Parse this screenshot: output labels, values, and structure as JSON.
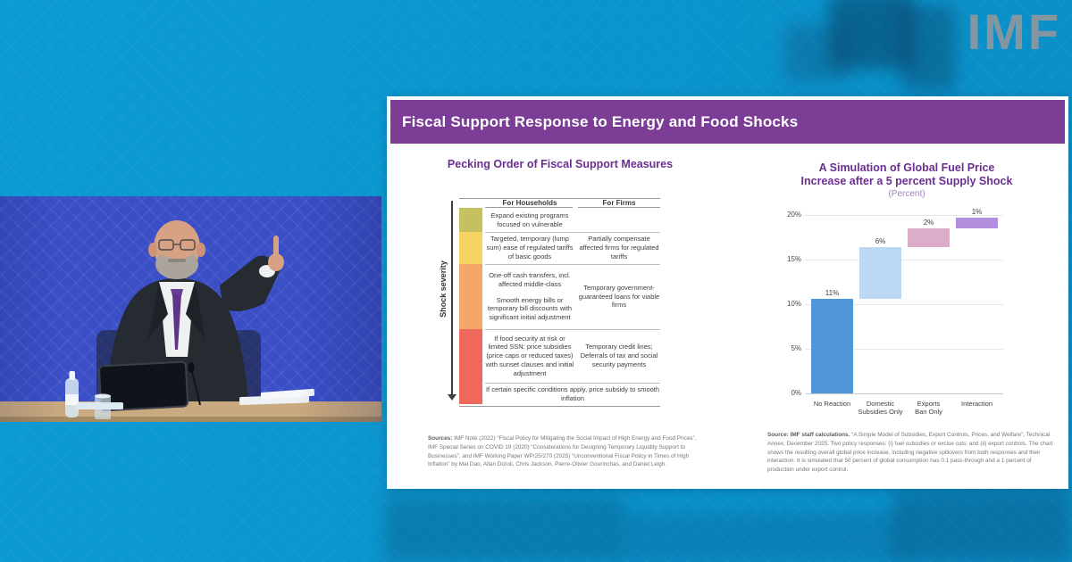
{
  "branding": {
    "logo_text": "IMF"
  },
  "slide": {
    "header_title": "Fiscal Support Response to Energy and Food Shocks",
    "left_panel": {
      "title": "Pecking Order of Fiscal Support Measures",
      "axis_label": "Shock severity",
      "columns": {
        "households": "For Households",
        "firms": "For Firms"
      },
      "severity_colors": [
        "#c5c161",
        "#f6d464",
        "#f3a869",
        "#ee695b"
      ],
      "rows": [
        {
          "households": "Expand existing programs focused on vulnerable",
          "firms": ""
        },
        {
          "households": "Targeted, temporary (lump sum) ease of regulated tariffs of basic goods",
          "firms": "Partially compensate affected firms for regulated tariffs"
        },
        {
          "households_a": "One-off cash transfers, incl. affected middle-class",
          "households_b": "Smooth energy bills or temporary bill discounts with significant initial adjustment",
          "firms": "Temporary government-guaranteed loans for viable firms"
        },
        {
          "households": "If food security at risk or limited SSN: price subsidies (price caps or reduced taxes) with sunset clauses and initial adjustment",
          "firms": "Temporary credit lines; Deferrals of tax and social security payments"
        },
        {
          "span": "If certain specific conditions apply, price subsidy to smooth inflation"
        }
      ],
      "sources_label": "Sources:",
      "sources_text": "IMF Note (2022) “Fiscal Policy for Mitigating the Social Impact of High Energy and Food Prices”, IMF Special Series on COVID 19 (2020) “Considerations for Designing Temporary Liquidity Support to Businesses”, and IMF Working Paper WP/25/270 (2025) “Unconventional Fiscal Policy in Times of High Inflation” by Mai Dao, Allan Dizioli, Chris Jackson, Pierre-Olivier Gourinchas, and Daniel Leigh."
    },
    "right_panel": {
      "title_line1": "A Simulation of Global Fuel Price",
      "title_line2": "Increase after a 5 percent Supply Shock",
      "subtitle": "(Percent)",
      "source_label": "Source: IMF staff calculations.",
      "source_text": "“A Simple Model of Subsidies, Export Controls, Prices, and Welfare”, Technical Annex, December 2025. Two policy responses: (i) fuel subsidies or excise cuts; and (ii) export controls. The chart shows the resulting overall global price increase, including negative spillovers from both responses and their interaction. It is simulated that 50 percent of global consumption has 0.1 pass-through and a 1 percent of production under export control."
    }
  },
  "chart_data": {
    "type": "bar",
    "subtype": "waterfall",
    "title": "A Simulation of Global Fuel Price Increase after a 5 percent Supply Shock",
    "subtitle_units": "(Percent)",
    "categories": [
      "No Reaction",
      "Domestic Subsidies Only",
      "Exports Ban Only",
      "Interaction"
    ],
    "category_lines": [
      [
        "No Reaction"
      ],
      [
        "Domestic",
        "Subsidies Only"
      ],
      [
        "Exports",
        "Ban Only"
      ],
      [
        "Interaction"
      ]
    ],
    "values": [
      11,
      6,
      2,
      1
    ],
    "value_labels": [
      "11%",
      "6%",
      "2%",
      "1%"
    ],
    "cumulative_start": [
      0,
      10.6,
      16.4,
      18.5
    ],
    "cumulative_end": [
      10.6,
      16.4,
      18.5,
      19.7
    ],
    "bar_colors": [
      "#4f97d7",
      "#bdd8f2",
      "#dcadca",
      "#b18ede"
    ],
    "ylim": [
      0,
      20
    ],
    "ytick_values": [
      0,
      5,
      10,
      15,
      20
    ],
    "ytick_labels": [
      "0%",
      "5%",
      "10%",
      "15%",
      "20%"
    ],
    "grid": true,
    "legend": false
  }
}
